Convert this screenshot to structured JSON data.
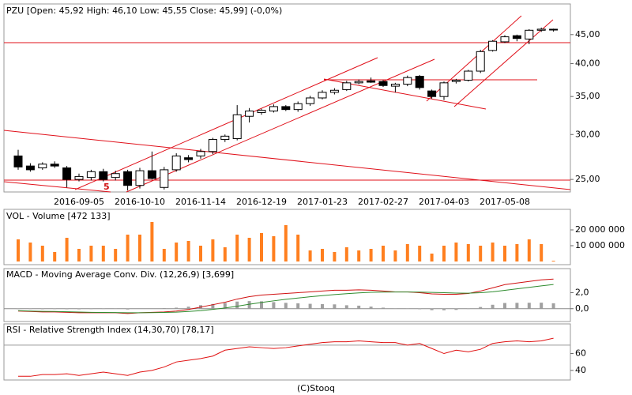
{
  "chart_data": [
    {
      "type": "candlestick",
      "title": "PZU [Open: 45,92 High: 46,10 Low: 45,55 Close: 45,99] (-0,0%)",
      "categories": [
        null,
        null,
        null,
        null,
        null,
        "2016-09-05",
        null,
        null,
        null,
        null,
        "2016-10-10",
        null,
        null,
        null,
        null,
        "2016-11-14",
        null,
        null,
        null,
        null,
        "2016-12-19",
        null,
        null,
        null,
        null,
        "2017-01-23",
        null,
        null,
        null,
        null,
        "2017-02-27",
        null,
        null,
        null,
        null,
        "2017-04-03",
        null,
        null,
        null,
        null,
        "2017-05-08",
        null,
        null,
        null,
        null
      ],
      "open": [
        27.5,
        26.4,
        26.2,
        26.6,
        26.2,
        25.0,
        25.2,
        25.8,
        25.2,
        25.8,
        24.4,
        25.9,
        24.2,
        26.0,
        27.3,
        27.5,
        28.0,
        29.4,
        29.5,
        32.3,
        32.8,
        33.0,
        33.6,
        33.2,
        34.0,
        34.8,
        35.6,
        36.0,
        37.0,
        37.3,
        37.2,
        36.5,
        36.8,
        38.0,
        35.8,
        35.0,
        37.2,
        37.4,
        38.8,
        42.2,
        43.7,
        44.8,
        44.2,
        45.8,
        45.92
      ],
      "high": [
        28.2,
        26.7,
        26.8,
        26.9,
        26.4,
        25.6,
        26.0,
        26.1,
        25.9,
        26.0,
        26.2,
        28.0,
        26.3,
        27.8,
        27.6,
        28.3,
        29.6,
        30.0,
        33.8,
        33.4,
        33.3,
        33.9,
        33.8,
        34.3,
        35.1,
        35.9,
        36.2,
        37.3,
        37.5,
        37.8,
        37.4,
        37.0,
        38.1,
        38.2,
        36.0,
        37.2,
        37.6,
        39.0,
        42.3,
        44.0,
        44.9,
        45.0,
        46.0,
        46.3,
        46.1
      ],
      "low": [
        26.0,
        25.8,
        26.0,
        26.2,
        24.2,
        24.8,
        24.9,
        24.8,
        24.9,
        23.9,
        24.1,
        25.0,
        24.0,
        25.8,
        26.8,
        27.2,
        27.7,
        29.1,
        29.3,
        31.5,
        32.5,
        32.8,
        33.0,
        32.9,
        33.7,
        34.6,
        35.3,
        35.8,
        36.8,
        37.0,
        36.4,
        35.6,
        36.5,
        36.0,
        34.7,
        34.5,
        36.9,
        37.2,
        38.5,
        42.0,
        43.5,
        43.8,
        43.3,
        45.5,
        45.55
      ],
      "close": [
        26.3,
        26.0,
        26.6,
        26.4,
        25.0,
        25.3,
        25.8,
        25.0,
        25.6,
        24.4,
        25.9,
        25.1,
        26.0,
        27.5,
        27.1,
        28.0,
        29.4,
        29.8,
        32.5,
        33.0,
        33.1,
        33.6,
        33.2,
        34.0,
        34.8,
        35.6,
        35.9,
        37.0,
        37.2,
        37.1,
        36.6,
        36.8,
        37.8,
        36.3,
        35.0,
        37.0,
        37.4,
        38.8,
        42.0,
        43.8,
        44.6,
        44.3,
        45.8,
        46.0,
        45.99
      ],
      "up_color": "#ffffff",
      "down_color": "#000000",
      "log_scale": true,
      "ylim": [
        23.76,
        50.96
      ],
      "yticks": [
        {
          "value": 25,
          "label": "25,00"
        },
        {
          "value": 30,
          "label": "30,00"
        },
        {
          "value": 35,
          "label": "35,00"
        },
        {
          "value": 40,
          "label": "40,00"
        },
        {
          "value": 45,
          "label": "45,00"
        }
      ],
      "annotations": [
        "5"
      ]
    },
    {
      "type": "bar",
      "title": "VOL - Volume [472 133]",
      "color": "#ff7f1f",
      "values": [
        14000000,
        12000000,
        10000000,
        6000000,
        15000000,
        8000000,
        10000000,
        10000000,
        8000000,
        17000000,
        17000000,
        25000000,
        8000000,
        12000000,
        13000000,
        10000000,
        14000000,
        9000000,
        17000000,
        15000000,
        18000000,
        16000000,
        23000000,
        17000000,
        7000000,
        8000000,
        6000000,
        9000000,
        7000000,
        8000000,
        10000000,
        7000000,
        11000000,
        10000000,
        5000000,
        10000000,
        12000000,
        11000000,
        10000000,
        12000000,
        10000000,
        11000000,
        14000000,
        11000000,
        472133
      ],
      "ylim": [
        -2000000,
        33000000
      ],
      "yticks": [
        {
          "value": 10000000,
          "label": "10 000 000"
        },
        {
          "value": 20000000,
          "label": "20 000 000"
        }
      ]
    },
    {
      "type": "macd",
      "title": "MACD - Moving Average Conv. Div. (12,26,9) [3,699]",
      "series": [
        {
          "color": "#d01010",
          "values": [
            -0.3,
            -0.35,
            -0.4,
            -0.4,
            -0.45,
            -0.5,
            -0.5,
            -0.5,
            -0.5,
            -0.6,
            -0.5,
            -0.45,
            -0.4,
            -0.3,
            -0.1,
            0.2,
            0.5,
            0.8,
            1.2,
            1.5,
            1.7,
            1.8,
            1.9,
            2.0,
            2.1,
            2.2,
            2.3,
            2.3,
            2.35,
            2.3,
            2.2,
            2.1,
            2.1,
            2.0,
            1.85,
            1.8,
            1.8,
            1.9,
            2.2,
            2.6,
            3.0,
            3.2,
            3.4,
            3.6,
            3.699
          ]
        },
        {
          "color": "#2e8b2e",
          "values": [
            -0.25,
            -0.3,
            -0.33,
            -0.35,
            -0.38,
            -0.42,
            -0.45,
            -0.47,
            -0.48,
            -0.5,
            -0.5,
            -0.49,
            -0.47,
            -0.43,
            -0.35,
            -0.24,
            -0.09,
            0.09,
            0.31,
            0.55,
            0.78,
            0.98,
            1.17,
            1.33,
            1.49,
            1.63,
            1.76,
            1.87,
            1.97,
            2.04,
            2.07,
            2.08,
            2.08,
            2.07,
            2.03,
            1.99,
            1.95,
            1.94,
            1.99,
            2.11,
            2.29,
            2.47,
            2.66,
            2.85,
            3.02
          ]
        }
      ],
      "histogram": {
        "color": "#a0a0a0",
        "values": [
          -0.05,
          -0.05,
          -0.07,
          -0.05,
          -0.07,
          -0.08,
          -0.05,
          -0.03,
          -0.02,
          -0.1,
          0,
          0.04,
          0.07,
          0.13,
          0.25,
          0.44,
          0.59,
          0.71,
          0.89,
          0.95,
          0.92,
          0.82,
          0.73,
          0.67,
          0.61,
          0.57,
          0.54,
          0.43,
          0.38,
          0.26,
          0.13,
          0.02,
          0.02,
          -0.07,
          -0.18,
          -0.19,
          -0.15,
          -0.04,
          0.21,
          0.49,
          0.71,
          0.73,
          0.74,
          0.75,
          0.68
        ]
      },
      "ylim": [
        -1.6,
        5.0
      ],
      "yticks": [
        {
          "value": 0,
          "label": "0,0"
        },
        {
          "value": 2,
          "label": "2,0"
        }
      ]
    },
    {
      "type": "line",
      "title": "RSI - Relative Strength Index (14,30,70) [78,17]",
      "color": "#e01010",
      "values": [
        33,
        33,
        35,
        35,
        36,
        34,
        36,
        38,
        36,
        34,
        38,
        40,
        44,
        50,
        52,
        54,
        57,
        64,
        66,
        68,
        67,
        66,
        67,
        69,
        71,
        73,
        74,
        74,
        75,
        74,
        73,
        73,
        70,
        72,
        66,
        60,
        64,
        62,
        65,
        72,
        74,
        75,
        74,
        75,
        78.17
      ],
      "ref_lines": [
        70
      ],
      "ylim": [
        28.6,
        95.2
      ],
      "yticks": [
        40,
        60
      ]
    }
  ],
  "credit": "(C)Stooq"
}
